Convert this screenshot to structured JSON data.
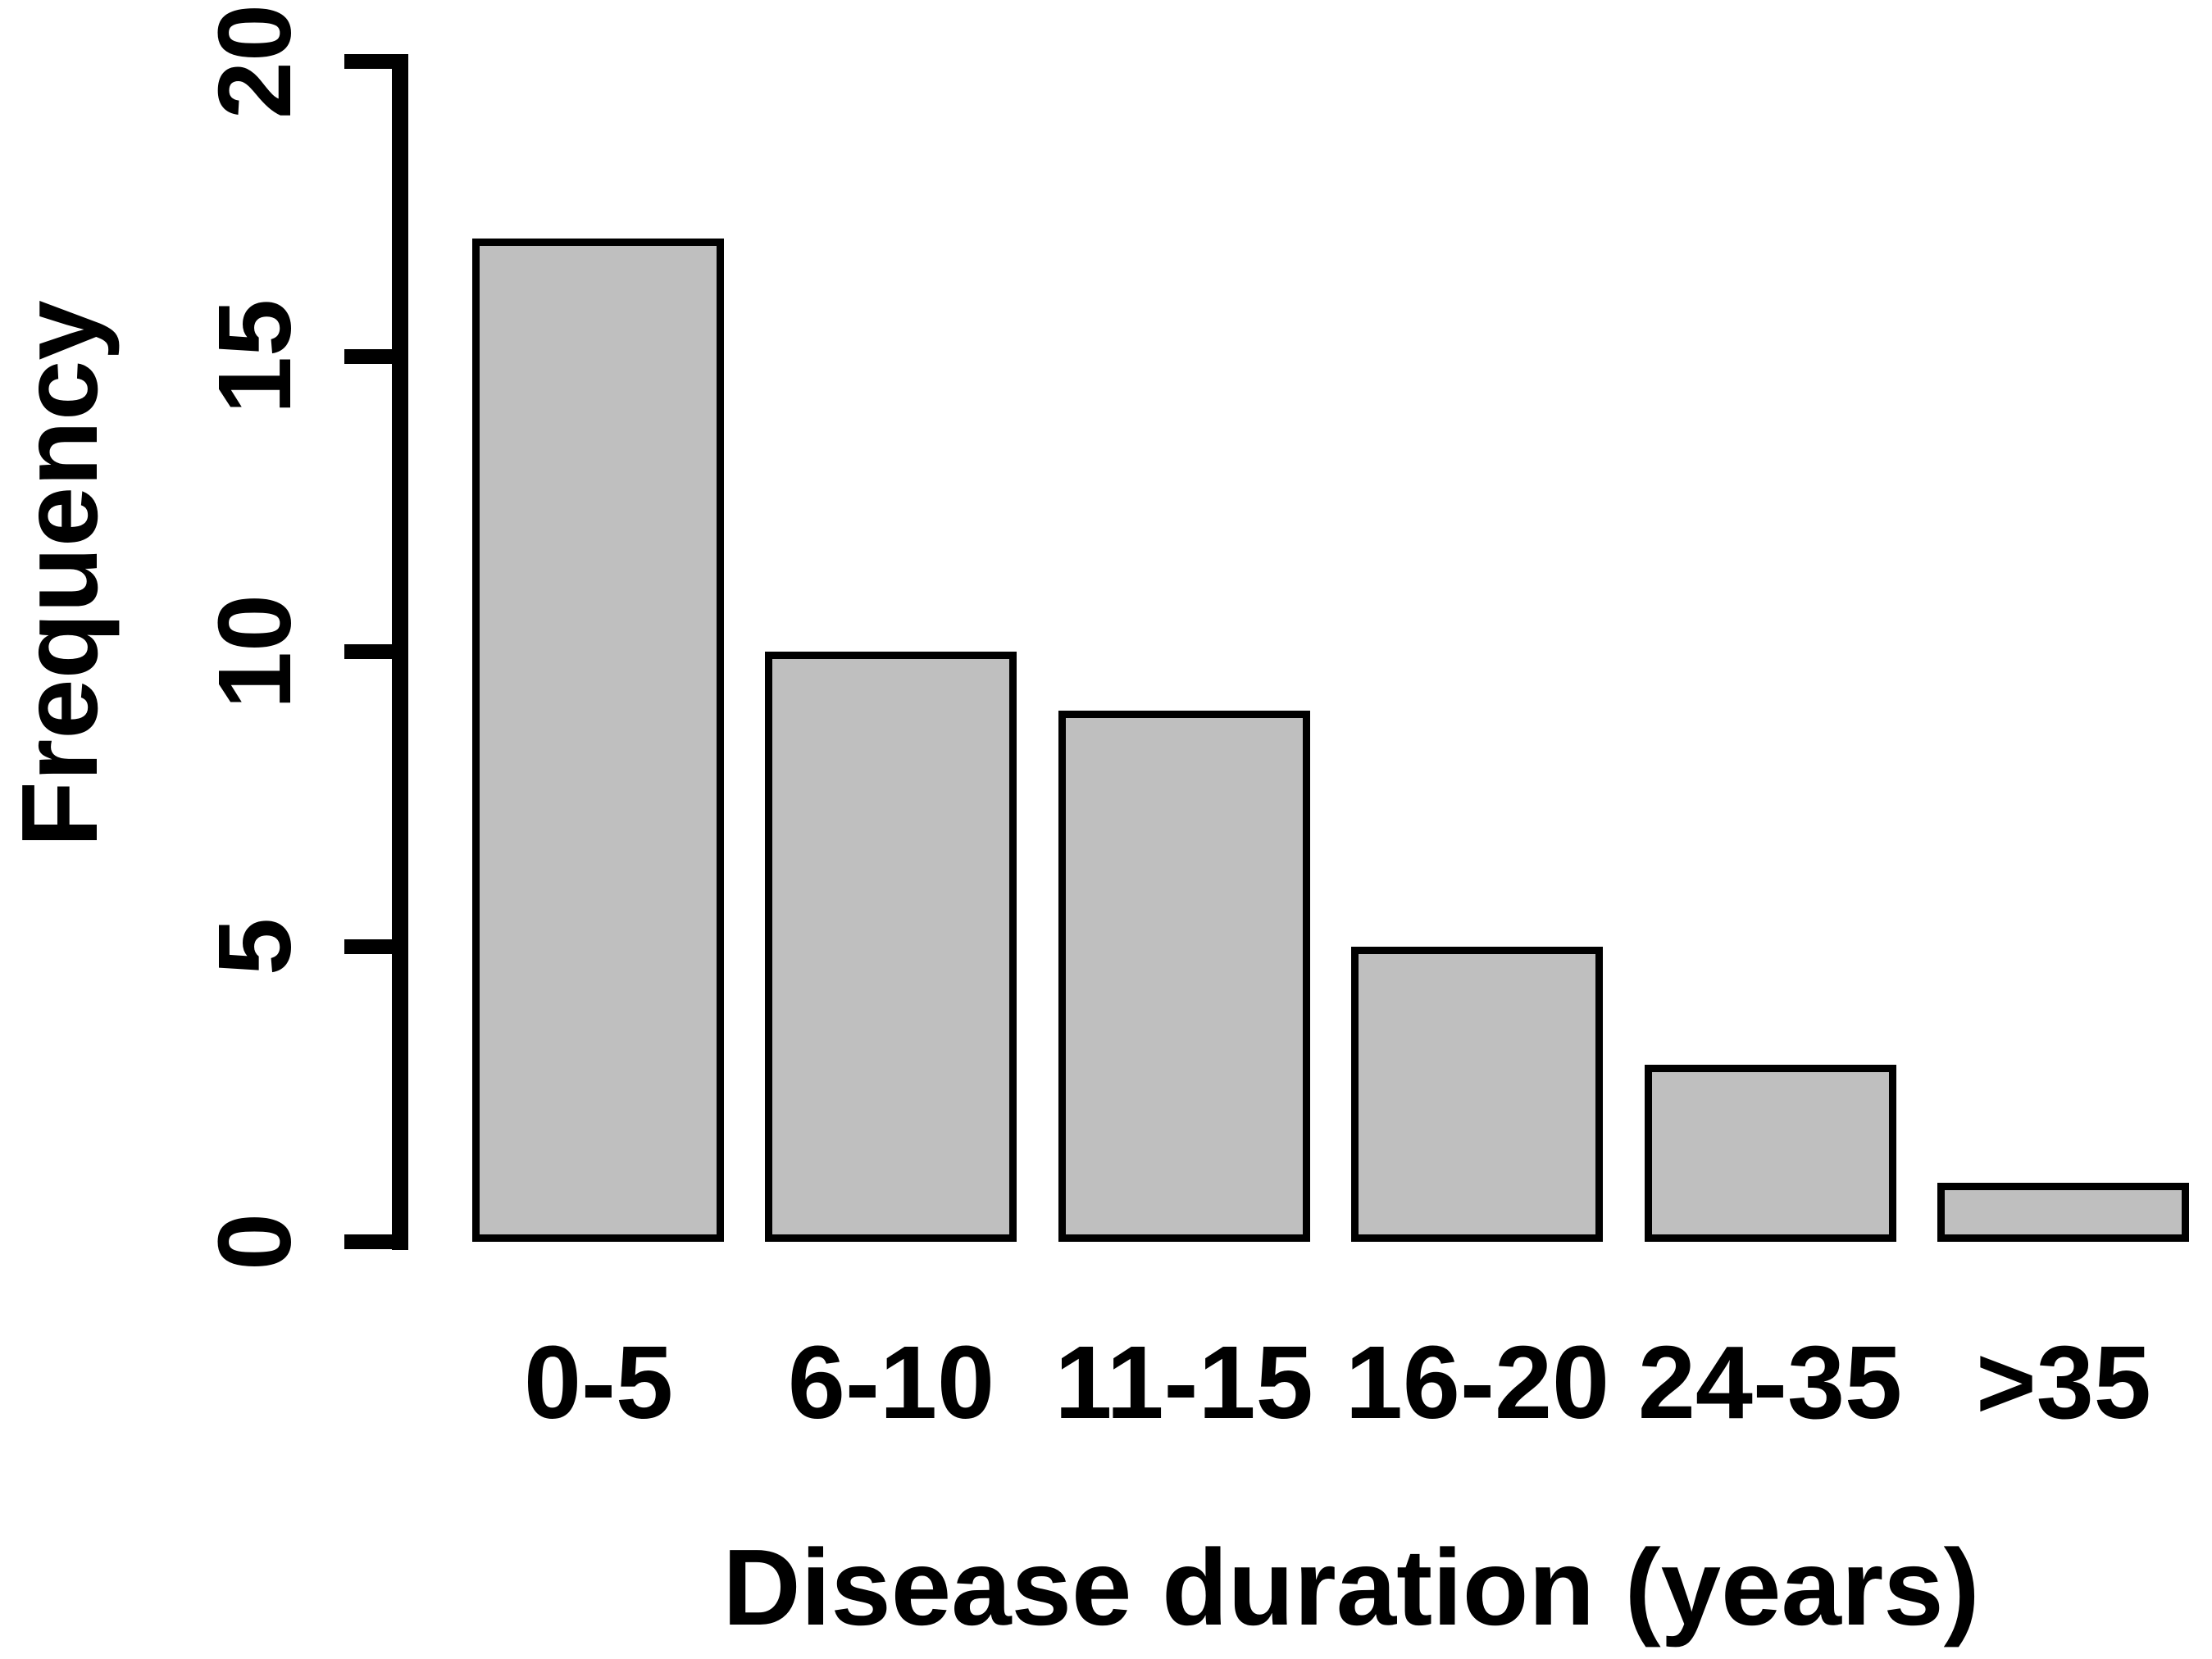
{
  "chart_data": {
    "type": "bar",
    "categories": [
      "0-5",
      "6-10",
      "11-15",
      "16-20",
      "24-35",
      ">35"
    ],
    "values": [
      17,
      10,
      9,
      5,
      3,
      1
    ],
    "xlabel": "Disease duration (years)",
    "ylabel": "Frequency",
    "ylim": [
      0,
      20
    ],
    "yticks": [
      0,
      5,
      10,
      15,
      20
    ],
    "grid": "off",
    "legend": "none",
    "colors": {
      "bar_fill": "#bfbfbf",
      "bar_border": "#000000",
      "axis": "#000000",
      "text": "#000000",
      "background": "#ffffff"
    }
  }
}
